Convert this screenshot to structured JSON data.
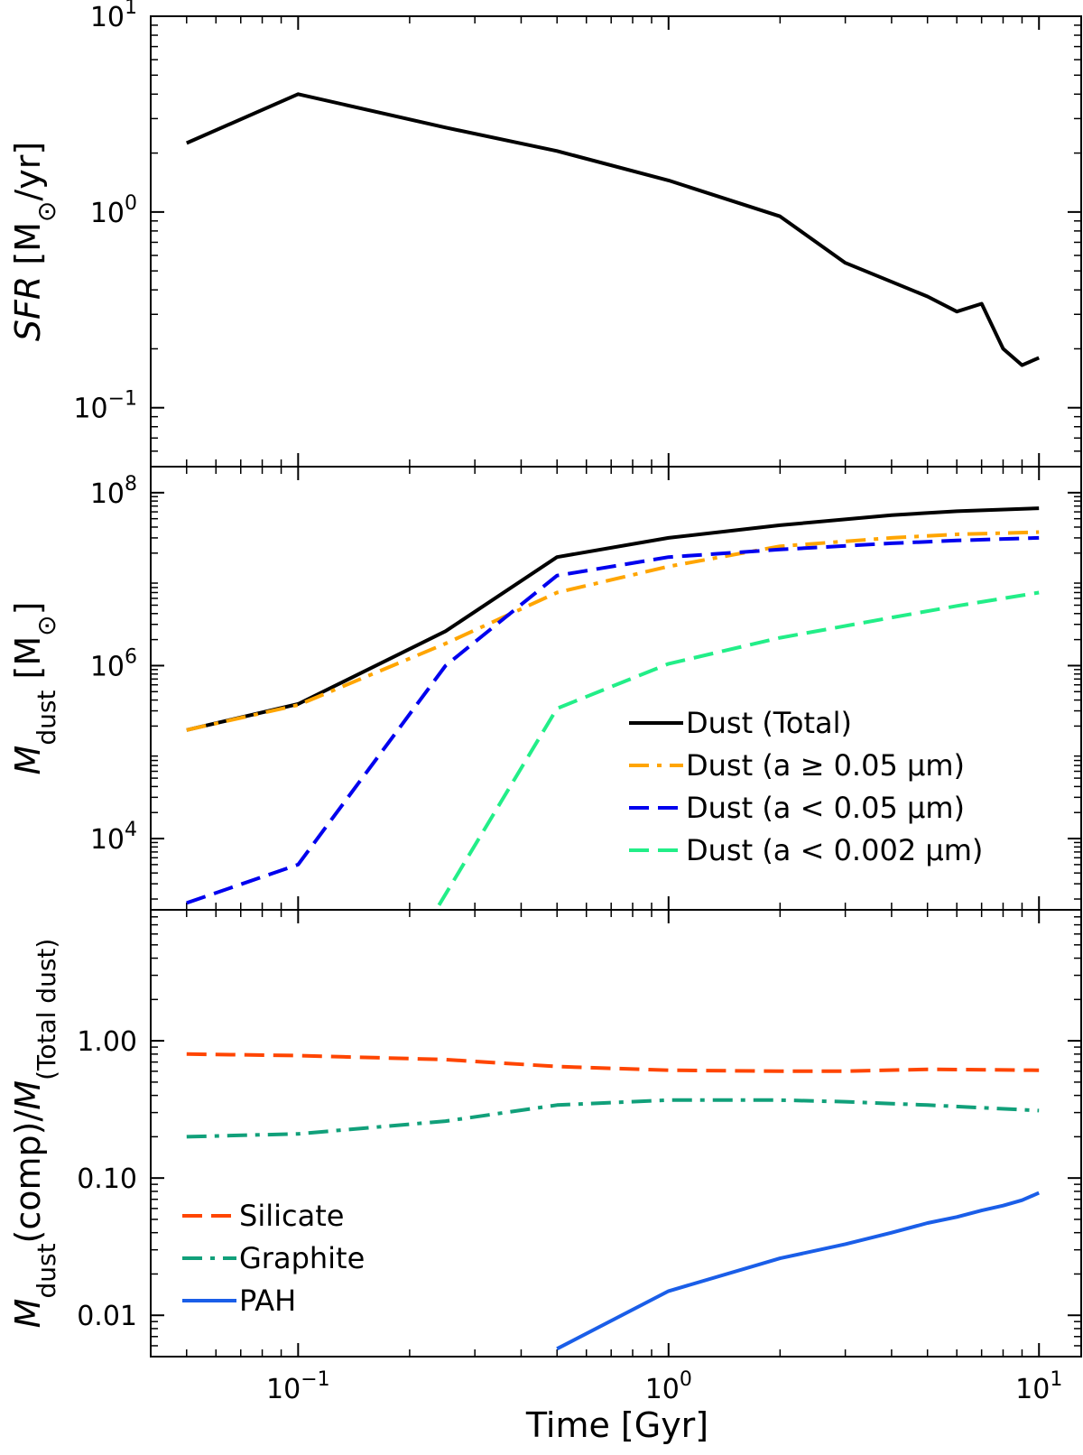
{
  "figure": {
    "xlabel": "Time [Gyr]",
    "xscale": "log",
    "xlim": [
      0.04,
      13
    ],
    "x_ticks": [
      0.1,
      1,
      10
    ],
    "x_tick_labels": [
      [
        "10",
        "−1"
      ],
      [
        "10",
        "0"
      ],
      [
        "10",
        "1"
      ]
    ]
  },
  "chart_data": [
    {
      "type": "line",
      "panel": "top",
      "yscale": "log",
      "ylim": [
        0.05,
        10
      ],
      "ylabel_parts": [
        {
          "text": "SFR",
          "style": "italic"
        },
        {
          "text": " [M",
          "style": "normal"
        },
        {
          "text": "⊙",
          "style": "sub"
        },
        {
          "text": "/yr]",
          "style": "normal"
        }
      ],
      "y_ticks": [
        10,
        1,
        0.1
      ],
      "y_tick_labels": [
        [
          "10",
          "1"
        ],
        [
          "10",
          "0"
        ],
        [
          "10",
          "−1"
        ]
      ],
      "legend": null,
      "series": [
        {
          "color": "#000000",
          "dash": "solid",
          "x": [
            0.05,
            0.1,
            0.25,
            0.5,
            1.0,
            2.0,
            3.0,
            4.0,
            5.0,
            6.0,
            7.0,
            8.0,
            9.0,
            10.0
          ],
          "y": [
            2.25,
            4.0,
            2.7,
            2.05,
            1.45,
            0.95,
            0.55,
            0.44,
            0.37,
            0.31,
            0.34,
            0.2,
            0.165,
            0.18
          ]
        }
      ]
    },
    {
      "type": "line",
      "panel": "middle",
      "yscale": "log",
      "ylim": [
        1500,
        200000000
      ],
      "ylabel_parts": [
        {
          "text": "M",
          "style": "italic"
        },
        {
          "text": "dust",
          "style": "sub"
        },
        {
          "text": " [M",
          "style": "normal"
        },
        {
          "text": "⊙",
          "style": "sub"
        },
        {
          "text": "]",
          "style": "normal"
        }
      ],
      "y_ticks": [
        100000000,
        1000000,
        10000
      ],
      "y_tick_labels": [
        [
          "10",
          "8"
        ],
        [
          "10",
          "6"
        ],
        [
          "10",
          "4"
        ]
      ],
      "legend": {
        "position": "lower right"
      },
      "series": [
        {
          "name": "Dust (Total)",
          "color": "#000000",
          "dash": "solid",
          "x": [
            0.05,
            0.1,
            0.25,
            0.5,
            1.0,
            2.0,
            4.0,
            6.0,
            10.0
          ],
          "y": [
            180000,
            360000,
            2500000,
            18000000,
            30000000,
            42000000,
            55000000,
            61000000,
            66000000
          ]
        },
        {
          "name": "Dust (a ≥ 0.05 μm)",
          "color": "#FFA500",
          "dash": "dashdot",
          "x": [
            0.05,
            0.1,
            0.25,
            0.5,
            1.0,
            2.0,
            4.0,
            6.0,
            10.0
          ],
          "y": [
            180000,
            350000,
            1800000,
            7000000,
            14000000,
            24000000,
            30000000,
            33000000,
            35000000
          ]
        },
        {
          "name": "Dust (a < 0.05 μm)",
          "color": "#0000EE",
          "dash": "dashed",
          "x": [
            0.05,
            0.1,
            0.25,
            0.5,
            1.0,
            2.0,
            4.0,
            6.0,
            10.0
          ],
          "y": [
            1800,
            5000,
            1000000,
            11000000,
            18000000,
            22000000,
            26000000,
            28000000,
            30000000
          ]
        },
        {
          "name": "Dust (a < 0.002 μm)",
          "color": "#22EE88",
          "dash": "dashed",
          "x": [
            0.24,
            0.5,
            1.0,
            2.0,
            4.0,
            6.0,
            10.0
          ],
          "y": [
            1700,
            320000,
            1050000,
            2100000,
            3600000,
            4900000,
            7000000
          ]
        }
      ]
    },
    {
      "type": "line",
      "panel": "bottom",
      "yscale": "log",
      "ylim": [
        0.005,
        9
      ],
      "ylabel_parts": [
        {
          "text": "M",
          "style": "italic"
        },
        {
          "text": "dust",
          "style": "sub"
        },
        {
          "text": "(comp)/",
          "style": "normal"
        },
        {
          "text": "M",
          "style": "italic"
        },
        {
          "text": "(Total dust)",
          "style": "sub"
        }
      ],
      "y_ticks": [
        1.0,
        0.1,
        0.01
      ],
      "y_tick_labels": [
        "1.00",
        "0.10",
        "0.01"
      ],
      "legend": {
        "position": "lower left"
      },
      "series": [
        {
          "name": "Silicate",
          "color": "#FF4500",
          "dash": "dashed",
          "x": [
            0.05,
            0.1,
            0.25,
            0.5,
            1.0,
            2.0,
            3.0,
            5.0,
            10.0
          ],
          "y": [
            0.8,
            0.78,
            0.73,
            0.65,
            0.61,
            0.6,
            0.6,
            0.62,
            0.61
          ]
        },
        {
          "name": "Graphite",
          "color": "#11A07A",
          "dash": "dashdot",
          "x": [
            0.05,
            0.1,
            0.25,
            0.5,
            1.0,
            2.0,
            3.0,
            5.0,
            10.0
          ],
          "y": [
            0.2,
            0.21,
            0.26,
            0.34,
            0.37,
            0.37,
            0.36,
            0.34,
            0.31
          ]
        },
        {
          "name": "PAH",
          "color": "#1A5EE8",
          "dash": "solid",
          "x": [
            0.5,
            1.0,
            2.0,
            3.0,
            4.0,
            5.0,
            6.0,
            7.0,
            8.0,
            9.0,
            10.0
          ],
          "y": [
            0.0057,
            0.015,
            0.026,
            0.033,
            0.04,
            0.047,
            0.052,
            0.058,
            0.063,
            0.069,
            0.078
          ]
        }
      ]
    }
  ]
}
